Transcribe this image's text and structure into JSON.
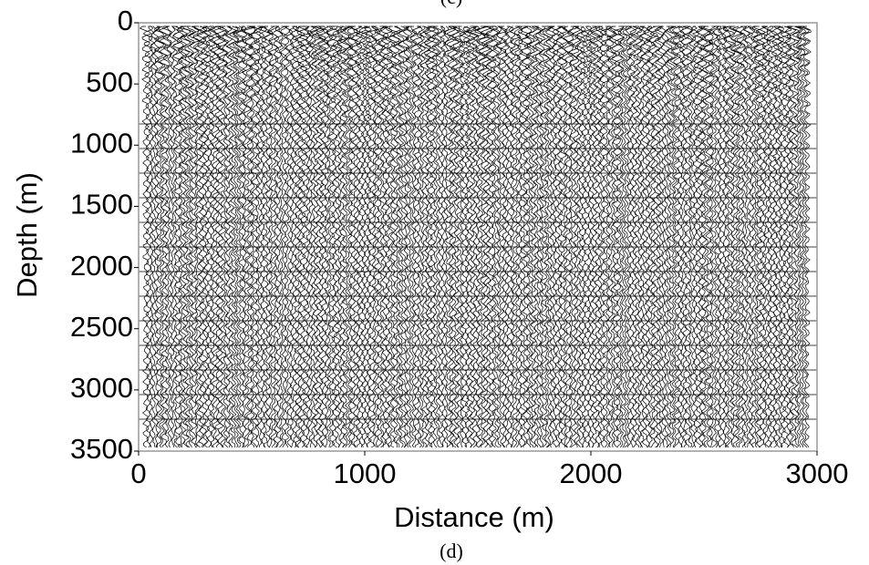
{
  "chart_data": {
    "type": "seismic-section",
    "top_caption": "(c)",
    "caption": "(d)",
    "x_label": "Distance (m)",
    "y_label": "Depth (m)",
    "xlim": [
      0,
      3000
    ],
    "xticks": [
      0,
      1000,
      2000,
      3000
    ],
    "ylim": [
      0,
      3500
    ],
    "yticks": [
      0,
      500,
      1000,
      1500,
      2000,
      2500,
      3000,
      3500
    ],
    "y_inverted": true
  }
}
